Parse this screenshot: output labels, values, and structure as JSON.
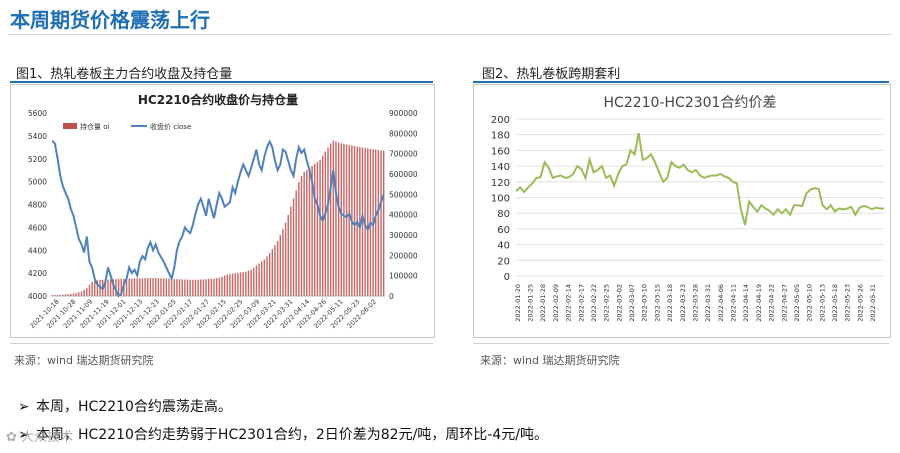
{
  "page": {
    "title": "本周期货价格震荡上行",
    "figure1_caption": "图1、热轧卷板主力合约收盘及持仓量",
    "figure2_caption": "图2、热轧卷板跨期套利",
    "source1": "来源：wind   瑞达期货研究院",
    "source2": "来源：wind   瑞达期货研究院",
    "bullets": [
      "本周，HC2210合约震荡走高。",
      "本周，HC2210合约走势弱于HC2301合约，2日价差为82元/吨，周环比-4元/吨。"
    ],
    "watermark": "✿ 大众技术",
    "bullet_icon": "arrow-right-icon"
  },
  "chart_data": [
    {
      "type": "bar+line",
      "title": "HC2210合约收盘价与持仓量",
      "legend": [
        "持仓量 oi",
        "收盘价 close"
      ],
      "legend_position": "top-left",
      "colors": {
        "bar": "#c0504d",
        "line": "#4f81bd"
      },
      "x_ticks": [
        "2021-10-18",
        "2021-10-28",
        "2021-11-09",
        "2021-11-19",
        "2021-12-01",
        "2021-12-13",
        "2021-12-23",
        "2022-01-05",
        "2022-01-17",
        "2022-01-27",
        "2022-02-15",
        "2022-02-25",
        "2022-03-09",
        "2022-03-21",
        "2022-03-31",
        "2022-04-14",
        "2022-04-26",
        "2022-05-11",
        "2022-05-23",
        "2022-06-02"
      ],
      "left_axis": {
        "ticks": [
          4000,
          4200,
          4400,
          4600,
          4800,
          5000,
          5200,
          5400,
          5600
        ],
        "ylim": [
          4000,
          5600
        ]
      },
      "right_axis": {
        "ticks": [
          0,
          100000,
          200000,
          300000,
          400000,
          500000,
          600000,
          700000,
          800000,
          900000
        ],
        "ylim": [
          0,
          900000
        ]
      },
      "series": [
        {
          "name": "持仓量 oi",
          "kind": "bar",
          "axis": "right",
          "values": [
            4000,
            4500,
            5000,
            6000,
            7000,
            8000,
            9000,
            10000,
            12000,
            15000,
            18000,
            22000,
            30000,
            40000,
            55000,
            70000,
            75000,
            77000,
            79000,
            80000,
            80000,
            81000,
            82000,
            82000,
            83000,
            84000,
            85000,
            85000,
            86000,
            86000,
            86000,
            87000,
            87000,
            87000,
            87000,
            88000,
            88000,
            88000,
            88000,
            88000,
            87000,
            87000,
            86000,
            86000,
            85000,
            84000,
            83000,
            83000,
            82000,
            82000,
            81000,
            80000,
            80000,
            80000,
            80000,
            80000,
            81000,
            82000,
            83000,
            84000,
            85000,
            86000,
            88000,
            90000,
            95000,
            100000,
            105000,
            108000,
            110000,
            112000,
            114000,
            116000,
            118000,
            120000,
            125000,
            130000,
            140000,
            150000,
            160000,
            170000,
            180000,
            195000,
            210000,
            230000,
            250000,
            270000,
            300000,
            330000,
            360000,
            400000,
            440000,
            480000,
            520000,
            560000,
            590000,
            610000,
            620000,
            630000,
            640000,
            650000,
            660000,
            670000,
            690000,
            710000,
            730000,
            750000,
            765000,
            760000,
            755000,
            750000,
            748000,
            745000,
            742000,
            740000,
            738000,
            735000,
            733000,
            730000,
            728000,
            726000,
            724000,
            722000,
            720000,
            718000,
            716000,
            714000
          ]
        },
        {
          "name": "收盘价 close",
          "kind": "line",
          "axis": "left",
          "values": [
            5360,
            5330,
            5200,
            5050,
            4960,
            4900,
            4850,
            4760,
            4700,
            4600,
            4500,
            4450,
            4380,
            4520,
            4300,
            4250,
            4150,
            4100,
            4080,
            4060,
            4120,
            4250,
            4180,
            4100,
            4050,
            4000,
            4020,
            4100,
            4150,
            4250,
            4200,
            4230,
            4180,
            4300,
            4350,
            4320,
            4420,
            4470,
            4400,
            4450,
            4380,
            4340,
            4300,
            4250,
            4200,
            4150,
            4250,
            4400,
            4480,
            4520,
            4600,
            4570,
            4550,
            4620,
            4720,
            4800,
            4850,
            4780,
            4700,
            4850,
            4760,
            4680,
            4800,
            4900,
            4850,
            4780,
            4800,
            4820,
            4950,
            4900,
            5000,
            5080,
            5150,
            5100,
            5050,
            5120,
            5200,
            5280,
            5150,
            5100,
            5220,
            5300,
            5350,
            5300,
            5180,
            5100,
            5150,
            5280,
            5260,
            5180,
            5100,
            5050,
            5200,
            5300,
            5250,
            5280,
            5180,
            5100,
            5000,
            4850,
            4800,
            4700,
            4660,
            4720,
            4800,
            4950,
            5100,
            4900,
            4780,
            4720,
            4700,
            4690,
            4720,
            4650,
            4620,
            4650,
            4600,
            4700,
            4620,
            4580,
            4640,
            4620,
            4700,
            4750,
            4820,
            4890
          ]
        }
      ]
    },
    {
      "type": "line",
      "title": "HC2210-HC2301合约价差",
      "grid": true,
      "colors": {
        "line": "#9bbb59"
      },
      "x_ticks": [
        "2022-01-20",
        "2022-01-25",
        "2022-01-28",
        "2022-02-09",
        "2022-02-14",
        "2022-02-17",
        "2022-02-22",
        "2022-02-25",
        "2022-03-02",
        "2022-03-07",
        "2022-03-10",
        "2022-03-15",
        "2022-03-18",
        "2022-03-23",
        "2022-03-28",
        "2022-03-31",
        "2022-04-06",
        "2022-04-11",
        "2022-04-14",
        "2022-04-19",
        "2022-04-22",
        "2022-04-27",
        "2022-05-05",
        "2022-05-10",
        "2022-05-13",
        "2022-05-18",
        "2022-05-23",
        "2022-05-26",
        "2022-05-31"
      ],
      "yticks": [
        0,
        20,
        40,
        60,
        80,
        100,
        120,
        140,
        160,
        180,
        200
      ],
      "ylim": [
        0,
        200
      ],
      "series": [
        {
          "name": "",
          "values": [
            108,
            113,
            107,
            113,
            118,
            125,
            126,
            145,
            138,
            125,
            127,
            128,
            125,
            126,
            130,
            140,
            136,
            125,
            148,
            132,
            135,
            140,
            125,
            128,
            115,
            130,
            140,
            142,
            160,
            155,
            182,
            148,
            150,
            155,
            145,
            132,
            120,
            125,
            145,
            140,
            138,
            142,
            135,
            132,
            135,
            128,
            125,
            127,
            128,
            128,
            130,
            127,
            125,
            120,
            118,
            85,
            65,
            95,
            88,
            82,
            90,
            86,
            83,
            78,
            85,
            80,
            85,
            78,
            90,
            90,
            89,
            105,
            110,
            112,
            111,
            90,
            85,
            90,
            82,
            86,
            85,
            86,
            88,
            78,
            87,
            89,
            88,
            85,
            87,
            86,
            86
          ]
        }
      ]
    }
  ]
}
